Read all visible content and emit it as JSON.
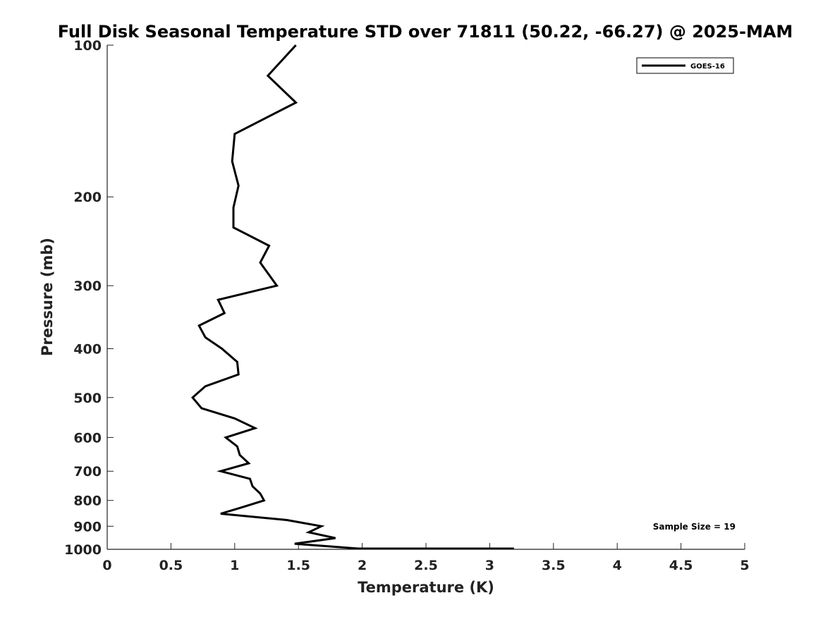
{
  "chart_data": {
    "type": "line",
    "title": "Full Disk Seasonal Temperature STD over 71811 (50.22, -66.27) @ 2025-MAM",
    "xlabel": "Temperature (K)",
    "ylabel": "Pressure (mb)",
    "xlim": [
      0,
      5
    ],
    "ylim": [
      100,
      1000
    ],
    "y_scale": "log",
    "y_reversed": true,
    "x_ticks": [
      "0",
      "0.5",
      "1",
      "1.5",
      "2",
      "2.5",
      "3",
      "3.5",
      "4",
      "4.5",
      "5"
    ],
    "y_ticks": [
      "100",
      "200",
      "300",
      "400",
      "500",
      "600",
      "700",
      "800",
      "900",
      "1000"
    ],
    "legend_position": "top-right",
    "grid": false,
    "annotation": "Sample Size = 19",
    "series": [
      {
        "name": "GOES-16",
        "color": "#000000",
        "x": [
          1.48,
          1.26,
          1.48,
          1.0,
          0.98,
          1.03,
          0.99,
          0.99,
          1.27,
          1.2,
          1.33,
          0.87,
          0.92,
          0.72,
          0.77,
          0.9,
          1.02,
          1.03,
          0.77,
          0.67,
          0.74,
          1.0,
          1.16,
          0.93,
          1.02,
          1.04,
          1.11,
          0.89,
          1.12,
          1.14,
          1.2,
          1.23,
          1.06,
          0.89,
          1.41,
          1.68,
          1.58,
          1.79,
          1.47,
          1.97,
          2.1,
          2.27,
          1.99,
          3.19
        ],
        "y": [
          100,
          115,
          130,
          150,
          170,
          190,
          210,
          230,
          250,
          270,
          300,
          320,
          340,
          360,
          380,
          400,
          425,
          450,
          475,
          500,
          525,
          550,
          575,
          600,
          625,
          650,
          675,
          700,
          725,
          750,
          775,
          800,
          825,
          850,
          875,
          900,
          925,
          950,
          975,
          1000,
          1000,
          1000,
          1000,
          1000
        ]
      }
    ]
  }
}
